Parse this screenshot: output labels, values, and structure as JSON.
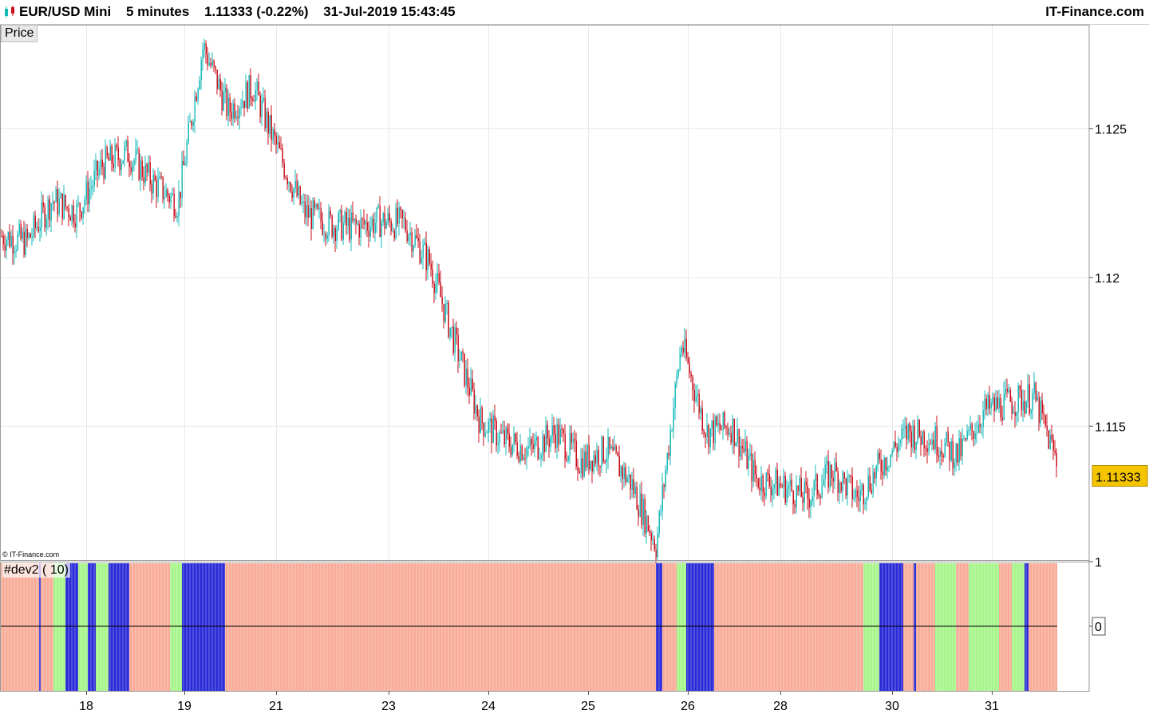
{
  "header": {
    "instrument": "EUR/USD Mini",
    "timeframe": "5 minutes",
    "last_price": "1.11333 (-0.22%)",
    "datetime": "31-Jul-2019 15:43:45",
    "brand": "IT-Finance.com"
  },
  "price_tab": "Price",
  "copyright": "© IT-Finance.com",
  "indicator_label": "#dev2 ( 10)",
  "colors": {
    "candle_up": "#17b8b8",
    "candle_down": "#c8101e",
    "last_price_badge": "#f5c400",
    "indicator_red": "#f8ab98",
    "indicator_green": "#a6f58a",
    "indicator_blue": "#2a2ad8"
  },
  "chart_data": [
    {
      "type": "line",
      "name": "price",
      "style": "candlestick",
      "ylim": [
        1.1105,
        1.1285
      ],
      "y_ticks": [
        "1.125",
        "1.12",
        "1.115"
      ],
      "last_value_label": "1.11333",
      "x_ticks": [
        "18",
        "19",
        "21",
        "23",
        "24",
        "25",
        "26",
        "28",
        "30",
        "31"
      ],
      "grid": true,
      "x": [
        "17",
        "17",
        "17",
        "18",
        "18",
        "18",
        "18",
        "18",
        "19",
        "19",
        "19",
        "19",
        "21",
        "21",
        "21",
        "21",
        "23",
        "23",
        "23",
        "23",
        "24",
        "24",
        "24",
        "24",
        "25",
        "25",
        "25",
        "25",
        "26",
        "26",
        "26",
        "26",
        "28",
        "28",
        "28",
        "28",
        "30",
        "30",
        "30",
        "30",
        "31",
        "31",
        "31"
      ],
      "values": [
        1.1214,
        1.1212,
        1.1226,
        1.1222,
        1.1238,
        1.1242,
        1.1232,
        1.1225,
        1.1278,
        1.1256,
        1.1264,
        1.1242,
        1.1222,
        1.1218,
        1.1217,
        1.1219,
        1.1218,
        1.1205,
        1.1178,
        1.1152,
        1.1145,
        1.1142,
        1.1148,
        1.1138,
        1.1142,
        1.1131,
        1.111,
        1.1178,
        1.1148,
        1.115,
        1.1132,
        1.113,
        1.1126,
        1.1135,
        1.1126,
        1.1138,
        1.1148,
        1.1146,
        1.114,
        1.1155,
        1.1158,
        1.116,
        1.1136
      ]
    },
    {
      "type": "bar",
      "name": "#dev2 ( 10)",
      "ylim": [
        -1,
        1
      ],
      "y_ticks": [
        "1",
        "0"
      ],
      "segments": [
        {
          "from": 0.0,
          "to": 0.049,
          "color": "red"
        },
        {
          "from": 0.049,
          "to": 0.051,
          "color": "blue"
        },
        {
          "from": 0.051,
          "to": 0.067,
          "color": "red"
        },
        {
          "from": 0.067,
          "to": 0.082,
          "color": "green"
        },
        {
          "from": 0.082,
          "to": 0.098,
          "color": "blue"
        },
        {
          "from": 0.098,
          "to": 0.11,
          "color": "green"
        },
        {
          "from": 0.11,
          "to": 0.12,
          "color": "blue"
        },
        {
          "from": 0.12,
          "to": 0.136,
          "color": "green"
        },
        {
          "from": 0.136,
          "to": 0.162,
          "color": "blue"
        },
        {
          "from": 0.162,
          "to": 0.213,
          "color": "red"
        },
        {
          "from": 0.213,
          "to": 0.228,
          "color": "green"
        },
        {
          "from": 0.228,
          "to": 0.258,
          "color": "blue"
        },
        {
          "from": 0.258,
          "to": 0.282,
          "color": "blue"
        },
        {
          "from": 0.282,
          "to": 0.822,
          "color": "red"
        },
        {
          "from": 0.822,
          "to": 0.83,
          "color": "blue"
        },
        {
          "from": 0.83,
          "to": 0.848,
          "color": "red"
        },
        {
          "from": 0.848,
          "to": 0.86,
          "color": "green"
        },
        {
          "from": 0.86,
          "to": 0.895,
          "color": "blue"
        },
        {
          "from": 0.895,
          "to": 1.082,
          "color": "red"
        },
        {
          "from": 1.082,
          "to": 1.102,
          "color": "green"
        },
        {
          "from": 1.102,
          "to": 1.132,
          "color": "blue"
        },
        {
          "from": 1.132,
          "to": 1.145,
          "color": "red"
        },
        {
          "from": 1.145,
          "to": 1.148,
          "color": "blue"
        },
        {
          "from": 1.148,
          "to": 1.172,
          "color": "red"
        },
        {
          "from": 1.172,
          "to": 1.198,
          "color": "green"
        },
        {
          "from": 1.198,
          "to": 1.214,
          "color": "red"
        },
        {
          "from": 1.214,
          "to": 1.252,
          "color": "green"
        },
        {
          "from": 1.252,
          "to": 1.268,
          "color": "red"
        },
        {
          "from": 1.268,
          "to": 1.284,
          "color": "green"
        },
        {
          "from": 1.284,
          "to": 1.289,
          "color": "blue"
        },
        {
          "from": 1.289,
          "to": 1.325,
          "color": "red"
        }
      ]
    }
  ]
}
